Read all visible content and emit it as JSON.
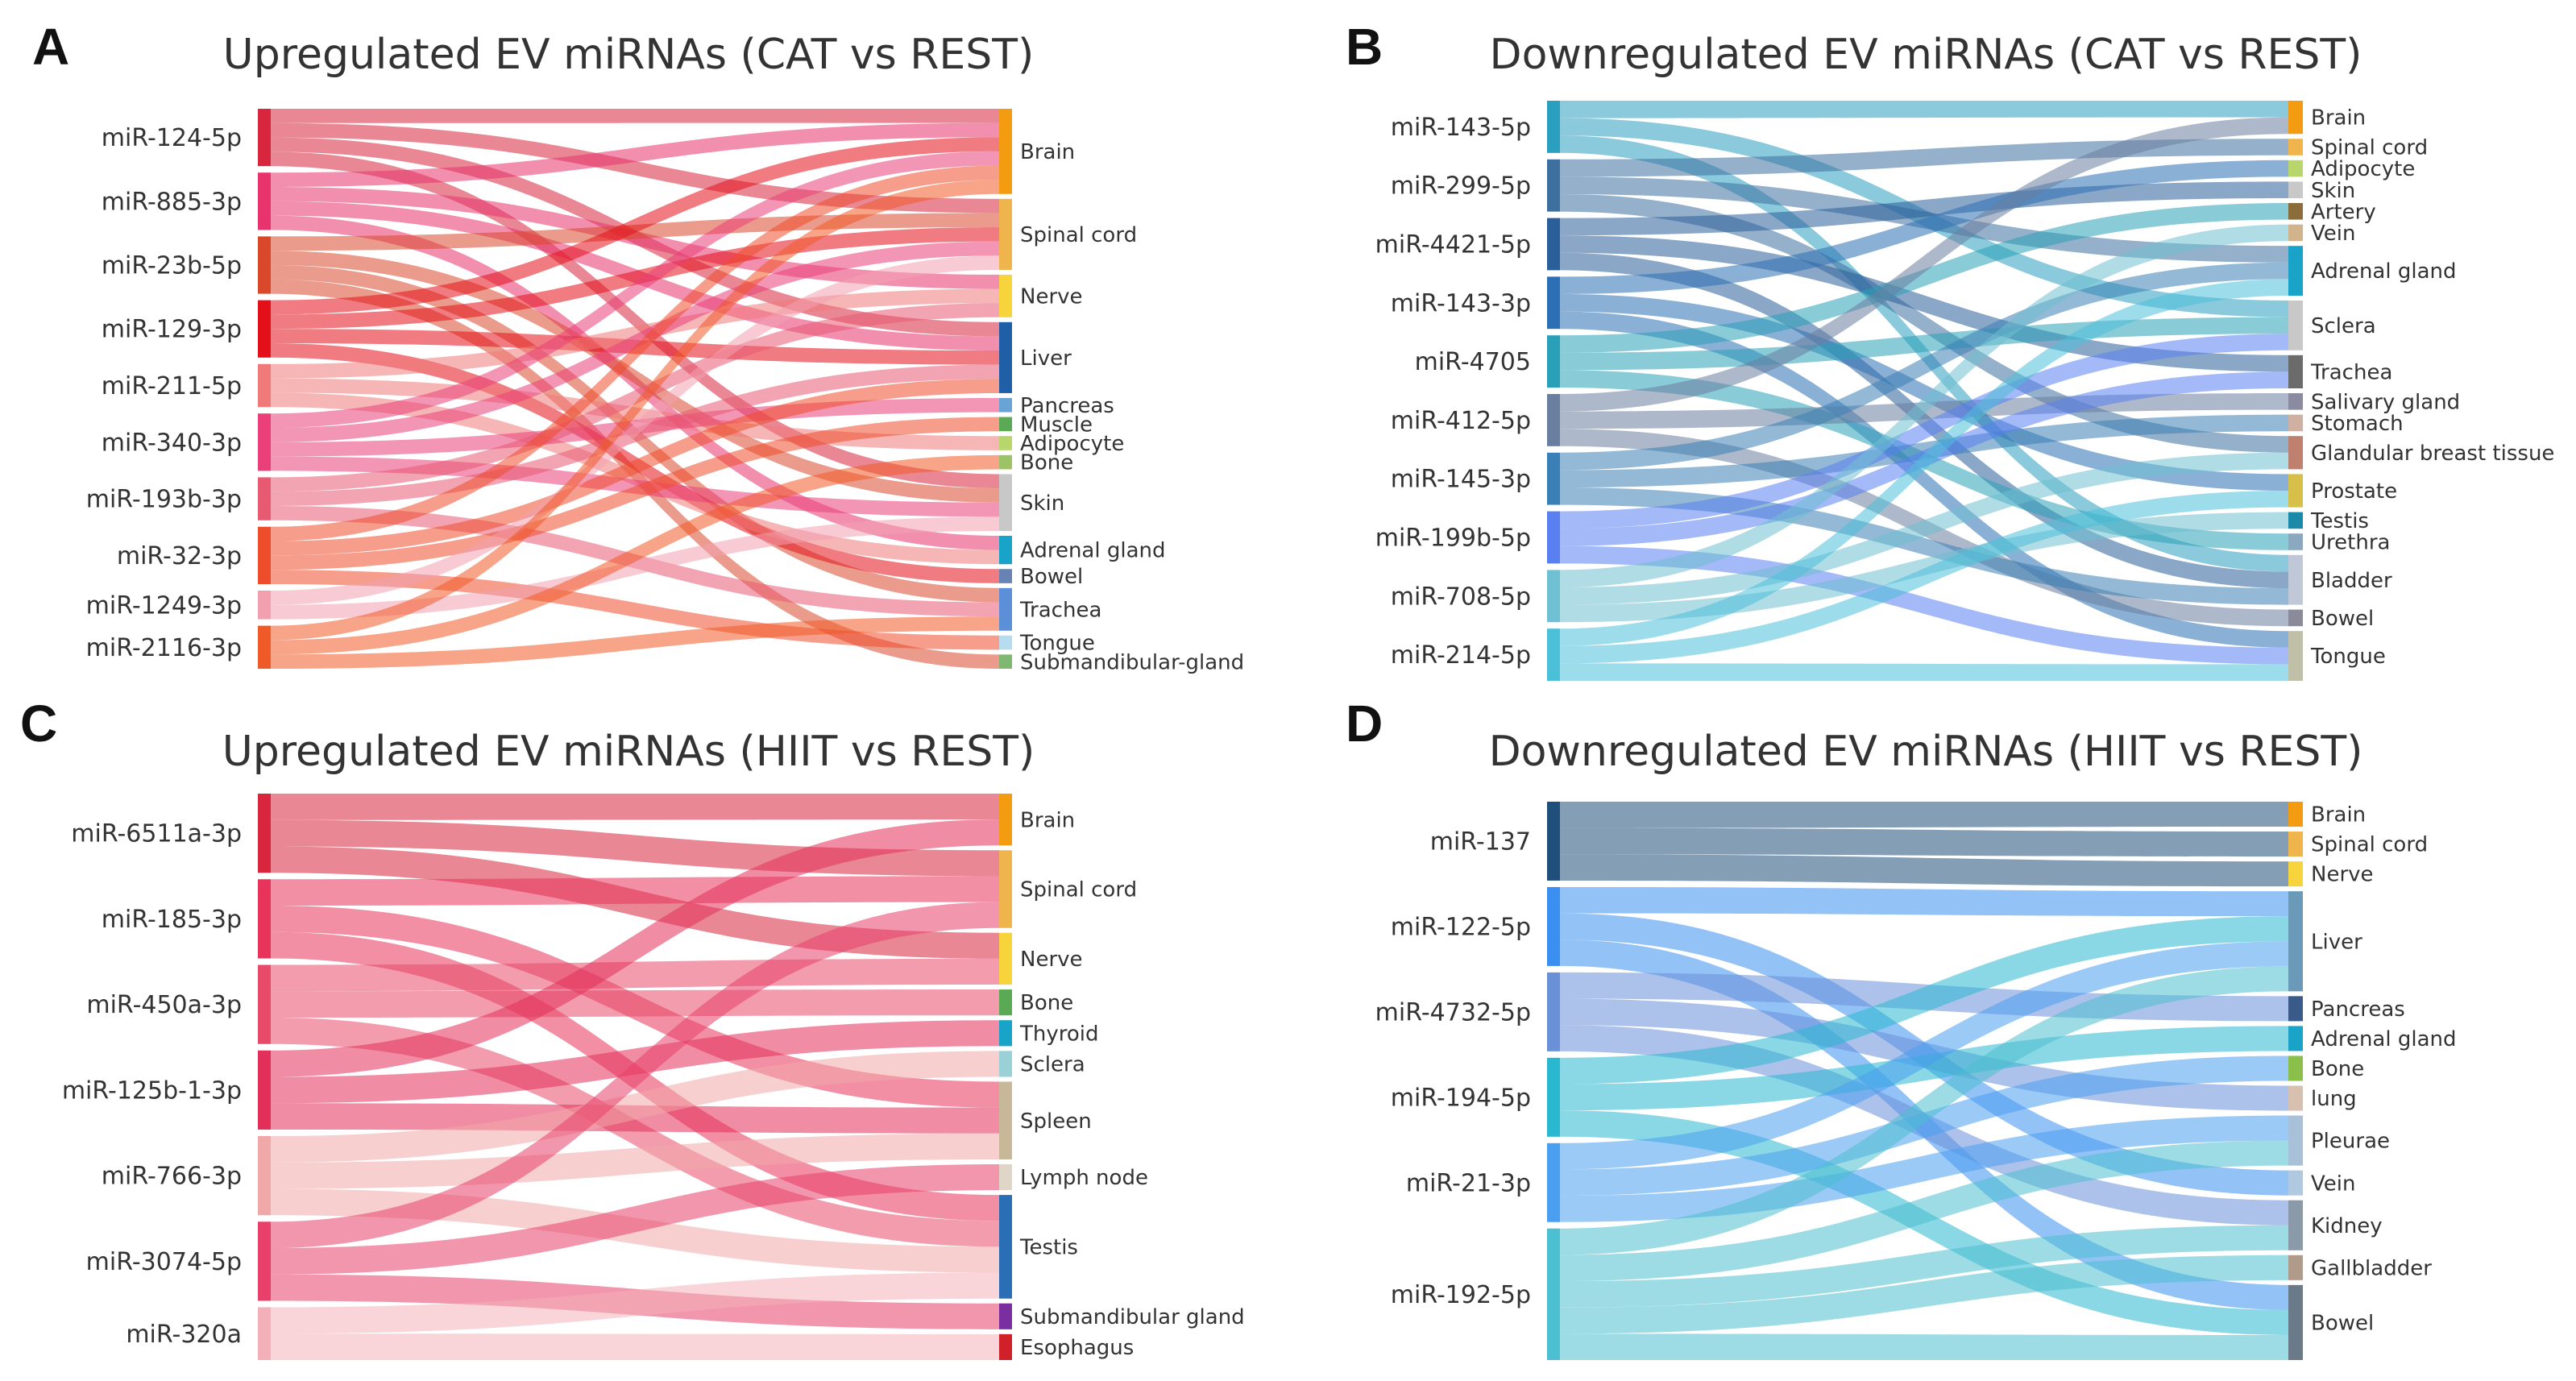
{
  "panels": [
    {
      "letter": "A",
      "title": "Upregulated EV miRNAs (CAT vs REST)",
      "sources": [
        {
          "name": "miR-124-5p",
          "color": "#d7263d"
        },
        {
          "name": "miR-885-3p",
          "color": "#e8336d"
        },
        {
          "name": "miR-23b-5p",
          "color": "#d9482b"
        },
        {
          "name": "miR-129-3p",
          "color": "#e3101a"
        },
        {
          "name": "miR-211-5p",
          "color": "#f07a7a"
        },
        {
          "name": "miR-340-3p",
          "color": "#ea3f78"
        },
        {
          "name": "miR-193b-3p",
          "color": "#e85a72"
        },
        {
          "name": "miR-32-3p",
          "color": "#ee4d2b"
        },
        {
          "name": "miR-1249-3p",
          "color": "#f2a0b0"
        },
        {
          "name": "miR-2116-3p",
          "color": "#f05a28"
        }
      ],
      "targets": [
        {
          "name": "Brain",
          "color": "#f39c12",
          "w": 5
        },
        {
          "name": "Spinal cord",
          "color": "#f0b44c",
          "w": 5
        },
        {
          "name": "Nerve",
          "color": "#f7d33c",
          "w": 2
        },
        {
          "name": "Liver",
          "color": "#1f5fa8",
          "w": 3
        },
        {
          "name": "Pancreas",
          "color": "#6aa3d5",
          "w": 1
        },
        {
          "name": "Muscle",
          "color": "#5aaa55",
          "w": 1
        },
        {
          "name": "Adipocyte",
          "color": "#b9d66c",
          "w": 1
        },
        {
          "name": "Bone",
          "color": "#9cc466",
          "w": 1
        },
        {
          "name": "Skin",
          "color": "#c8c8c8",
          "w": 2
        },
        {
          "name": "Adrenal gland",
          "color": "#1aa3c9",
          "w": 2
        },
        {
          "name": "Bowel",
          "color": "#6683b3",
          "w": 1
        },
        {
          "name": "Trachea",
          "color": "#5b8fd8",
          "w": 2
        },
        {
          "name": "Tongue",
          "color": "#b6dcf2",
          "w": 1
        },
        {
          "name": "Submandibular-gland",
          "color": "#7fb870",
          "w": 1
        }
      ],
      "links": [
        [
          0,
          0
        ],
        [
          0,
          1
        ],
        [
          0,
          3
        ],
        [
          0,
          8
        ],
        [
          1,
          0
        ],
        [
          1,
          2
        ],
        [
          1,
          3
        ],
        [
          1,
          9
        ],
        [
          2,
          1
        ],
        [
          2,
          8
        ],
        [
          2,
          11
        ],
        [
          2,
          13
        ],
        [
          3,
          0
        ],
        [
          3,
          1
        ],
        [
          3,
          3
        ],
        [
          3,
          10
        ],
        [
          4,
          2
        ],
        [
          4,
          6
        ],
        [
          4,
          9
        ],
        [
          5,
          0
        ],
        [
          5,
          1
        ],
        [
          5,
          4
        ],
        [
          5,
          8
        ],
        [
          6,
          2
        ],
        [
          6,
          3
        ],
        [
          6,
          11
        ],
        [
          7,
          0
        ],
        [
          7,
          3
        ],
        [
          7,
          5
        ],
        [
          7,
          12
        ],
        [
          8,
          1
        ],
        [
          8,
          8
        ],
        [
          9,
          0
        ],
        [
          9,
          7
        ],
        [
          9,
          11
        ]
      ]
    },
    {
      "letter": "B",
      "title": "Downregulated EV miRNAs (CAT vs REST)",
      "sources": [
        {
          "name": "miR-143-5p",
          "color": "#2a9fc0"
        },
        {
          "name": "miR-299-5p",
          "color": "#3d6f9f"
        },
        {
          "name": "miR-4421-5p",
          "color": "#2a5f9a"
        },
        {
          "name": "miR-143-3p",
          "color": "#2c6fb5"
        },
        {
          "name": "miR-4705",
          "color": "#2aa0b8"
        },
        {
          "name": "miR-412-5p",
          "color": "#6a7fa0"
        },
        {
          "name": "miR-145-3p",
          "color": "#3a7fb5"
        },
        {
          "name": "miR-199b-5p",
          "color": "#5a7ff0"
        },
        {
          "name": "miR-708-5p",
          "color": "#6fc0d2"
        },
        {
          "name": "miR-214-5p",
          "color": "#4cc0d8"
        }
      ],
      "targets": [
        {
          "name": "Brain",
          "color": "#f39c12",
          "w": 2
        },
        {
          "name": "Spinal cord",
          "color": "#f0b44c",
          "w": 1
        },
        {
          "name": "Adipocyte",
          "color": "#b9d66c",
          "w": 1
        },
        {
          "name": "Skin",
          "color": "#c8c8c8",
          "w": 1
        },
        {
          "name": "Artery",
          "color": "#8a6d3b",
          "w": 1
        },
        {
          "name": "Vein",
          "color": "#d2b48c",
          "w": 1
        },
        {
          "name": "Adrenal gland",
          "color": "#1aa3c9",
          "w": 2
        },
        {
          "name": "Sclera",
          "color": "#c8c8c8",
          "w": 3
        },
        {
          "name": "Trachea",
          "color": "#6b6b6b",
          "w": 2
        },
        {
          "name": "Salivary gland",
          "color": "#8a8aa0",
          "w": 1
        },
        {
          "name": "Stomach",
          "color": "#d0b0a0",
          "w": 1
        },
        {
          "name": "Glandular breast tissue",
          "color": "#c08070",
          "w": 2
        },
        {
          "name": "Prostate",
          "color": "#d6c04a",
          "w": 2
        },
        {
          "name": "Testis",
          "color": "#1a8aa8",
          "w": 1
        },
        {
          "name": "Urethra",
          "color": "#8aa8c0",
          "w": 1
        },
        {
          "name": "Bladder",
          "color": "#c0c8d8",
          "w": 3
        },
        {
          "name": "Bowel",
          "color": "#8a8a9a",
          "w": 1
        },
        {
          "name": "Tongue",
          "color": "#c0c0a8",
          "w": 2
        }
      ],
      "links": [
        [
          0,
          0
        ],
        [
          0,
          7
        ],
        [
          0,
          15
        ],
        [
          1,
          1
        ],
        [
          1,
          6
        ],
        [
          1,
          11
        ],
        [
          2,
          3
        ],
        [
          2,
          8
        ],
        [
          2,
          15
        ],
        [
          3,
          2
        ],
        [
          3,
          12
        ],
        [
          3,
          17
        ],
        [
          4,
          4
        ],
        [
          4,
          7
        ],
        [
          4,
          14
        ],
        [
          5,
          0
        ],
        [
          5,
          9
        ],
        [
          5,
          16
        ],
        [
          6,
          6
        ],
        [
          6,
          10
        ],
        [
          6,
          15
        ],
        [
          7,
          7
        ],
        [
          7,
          8
        ],
        [
          7,
          17
        ],
        [
          8,
          5
        ],
        [
          8,
          11
        ],
        [
          8,
          13
        ],
        [
          9,
          6
        ],
        [
          9,
          12
        ],
        [
          9,
          17
        ]
      ]
    },
    {
      "letter": "C",
      "title": "Upregulated EV miRNAs (HIIT vs REST)",
      "sources": [
        {
          "name": "miR-6511a-3p",
          "color": "#d7263d"
        },
        {
          "name": "miR-185-3p",
          "color": "#e8335a"
        },
        {
          "name": "miR-450a-3p",
          "color": "#e84a6a"
        },
        {
          "name": "miR-125b-1-3p",
          "color": "#e3305a"
        },
        {
          "name": "miR-766-3p",
          "color": "#f0a8a8"
        },
        {
          "name": "miR-3074-5p",
          "color": "#e8406a"
        },
        {
          "name": "miR-320a",
          "color": "#f4b0b8"
        }
      ],
      "targets": [
        {
          "name": "Brain",
          "color": "#f39c12",
          "w": 2
        },
        {
          "name": "Spinal cord",
          "color": "#f0b44c",
          "w": 3
        },
        {
          "name": "Nerve",
          "color": "#f7d33c",
          "w": 2
        },
        {
          "name": "Bone",
          "color": "#5aaa55",
          "w": 1
        },
        {
          "name": "Thyroid",
          "color": "#1aa3c9",
          "w": 1
        },
        {
          "name": "Sclera",
          "color": "#9ad0d8",
          "w": 1
        },
        {
          "name": "Spleen",
          "color": "#c8b89a",
          "w": 3
        },
        {
          "name": "Lymph node",
          "color": "#e0d6c8",
          "w": 1
        },
        {
          "name": "Testis",
          "color": "#2a6fb5",
          "w": 4
        },
        {
          "name": "Submandibular gland",
          "color": "#7a2fa0",
          "w": 1
        },
        {
          "name": "Esophagus",
          "color": "#d0202a",
          "w": 1
        }
      ],
      "links": [
        [
          0,
          0
        ],
        [
          0,
          1
        ],
        [
          0,
          2
        ],
        [
          1,
          1
        ],
        [
          1,
          6
        ],
        [
          1,
          8
        ],
        [
          2,
          2
        ],
        [
          2,
          3
        ],
        [
          2,
          8
        ],
        [
          3,
          0
        ],
        [
          3,
          4
        ],
        [
          3,
          6
        ],
        [
          4,
          6
        ],
        [
          4,
          5
        ],
        [
          4,
          8
        ],
        [
          5,
          1
        ],
        [
          5,
          7
        ],
        [
          5,
          9
        ],
        [
          6,
          8
        ],
        [
          6,
          10
        ]
      ]
    },
    {
      "letter": "D",
      "title": "Downregulated EV miRNAs (HIIT vs REST)",
      "sources": [
        {
          "name": "miR-137",
          "color": "#1f4f7a"
        },
        {
          "name": "miR-122-5p",
          "color": "#3a8ff0"
        },
        {
          "name": "miR-4732-5p",
          "color": "#6a90d8"
        },
        {
          "name": "miR-194-5p",
          "color": "#2ab8d0"
        },
        {
          "name": "miR-21-3p",
          "color": "#4a9ff0"
        },
        {
          "name": "miR-192-5p",
          "color": "#4cc0d0"
        }
      ],
      "targets": [
        {
          "name": "Brain",
          "color": "#f39c12",
          "w": 1
        },
        {
          "name": "Spinal cord",
          "color": "#f0b44c",
          "w": 1
        },
        {
          "name": "Nerve",
          "color": "#f7d33c",
          "w": 1
        },
        {
          "name": "Liver",
          "color": "#6a9ab8",
          "w": 3
        },
        {
          "name": "Pancreas",
          "color": "#3a5a8a",
          "w": 1
        },
        {
          "name": "Adrenal gland",
          "color": "#1aa3c9",
          "w": 1
        },
        {
          "name": "Bone",
          "color": "#8ac04a",
          "w": 1
        },
        {
          "name": "lung",
          "color": "#d8c0b0",
          "w": 1
        },
        {
          "name": "Pleurae",
          "color": "#a8c0d8",
          "w": 2
        },
        {
          "name": "Vein",
          "color": "#b0c8e0",
          "w": 1
        },
        {
          "name": "Kidney",
          "color": "#8a9aa8",
          "w": 2
        },
        {
          "name": "Gallbladder",
          "color": "#b09a8a",
          "w": 1
        },
        {
          "name": "Bowel",
          "color": "#6a7a88",
          "w": 2
        }
      ],
      "links": [
        [
          0,
          0
        ],
        [
          0,
          1
        ],
        [
          0,
          2
        ],
        [
          1,
          3
        ],
        [
          1,
          9
        ],
        [
          1,
          12
        ],
        [
          2,
          4
        ],
        [
          2,
          7
        ],
        [
          2,
          10
        ],
        [
          3,
          3
        ],
        [
          3,
          5
        ],
        [
          3,
          12
        ],
        [
          4,
          3
        ],
        [
          4,
          6
        ],
        [
          4,
          8
        ],
        [
          5,
          3
        ],
        [
          5,
          8
        ],
        [
          5,
          10
        ],
        [
          5,
          11
        ],
        [
          5,
          12
        ]
      ]
    }
  ]
}
